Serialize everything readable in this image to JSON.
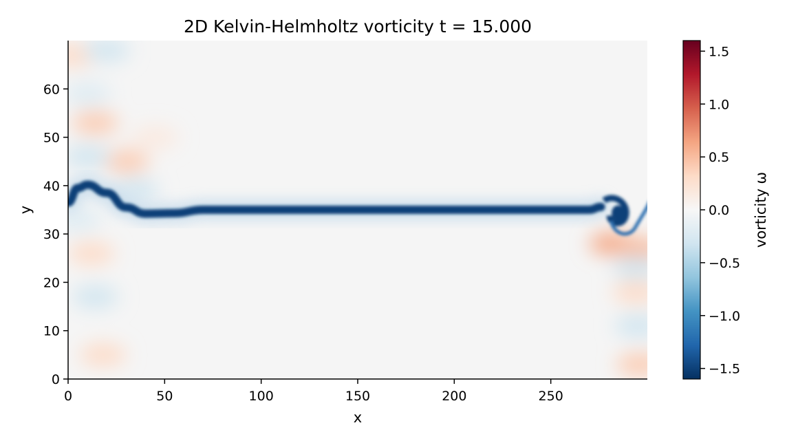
{
  "chart_data": {
    "type": "heatmap",
    "title": "2D Kelvin-Helmholtz vorticity  t = 15.000",
    "xlabel": "x",
    "ylabel": "y",
    "xlim": [
      0,
      300
    ],
    "ylim": [
      0,
      70
    ],
    "xticks": [
      0,
      50,
      100,
      150,
      200,
      250
    ],
    "yticks": [
      0,
      10,
      20,
      30,
      40,
      50,
      60
    ],
    "grid": false,
    "colorbar": {
      "label": "vorticity ω",
      "colormap": "RdBu_r",
      "vmin": -1.6,
      "vmax": 1.6,
      "ticks": [
        -1.5,
        -1.0,
        -0.5,
        0.0,
        0.5,
        1.0,
        1.5
      ],
      "tick_labels": [
        "−1.5",
        "−1.0",
        "−0.5",
        "0.0",
        "0.5",
        "1.0",
        "1.5"
      ]
    },
    "shear_layer": {
      "points": [
        [
          0,
          36.5
        ],
        [
          5,
          39.5
        ],
        [
          10,
          40.2
        ],
        [
          20,
          38.5
        ],
        [
          30,
          35.5
        ],
        [
          40,
          34.2
        ],
        [
          55,
          34.3
        ],
        [
          70,
          35.0
        ],
        [
          150,
          35.0
        ],
        [
          270,
          35.0
        ],
        [
          276,
          35.6
        ]
      ],
      "vorticity": -1.5
    },
    "vortex": {
      "x": 284,
      "y": 33.5,
      "vorticity": -1.5
    },
    "blobs": [
      {
        "x": 14,
        "y": 53,
        "vorticity": 0.4
      },
      {
        "x": 30,
        "y": 45,
        "vorticity": 0.4
      },
      {
        "x": 3,
        "y": 67,
        "vorticity": 0.3
      },
      {
        "x": 12,
        "y": 26,
        "vorticity": 0.3
      },
      {
        "x": 18,
        "y": 5,
        "vorticity": 0.3
      },
      {
        "x": 45,
        "y": 50,
        "vorticity": 0.15
      },
      {
        "x": 10,
        "y": 46,
        "vorticity": -0.3
      },
      {
        "x": 20,
        "y": 68,
        "vorticity": -0.3
      },
      {
        "x": 14,
        "y": 17,
        "vorticity": -0.3
      },
      {
        "x": 5,
        "y": 33,
        "vorticity": -0.2
      },
      {
        "x": 35,
        "y": 39,
        "vorticity": -0.3
      },
      {
        "x": 10,
        "y": 59,
        "vorticity": -0.2
      },
      {
        "x": 282,
        "y": 28,
        "vorticity": 0.6
      },
      {
        "x": 295,
        "y": 27,
        "vorticity": 0.5
      },
      {
        "x": 294,
        "y": 18,
        "vorticity": 0.3
      },
      {
        "x": 296,
        "y": 3,
        "vorticity": 0.4
      },
      {
        "x": 294,
        "y": 23,
        "vorticity": -0.3
      },
      {
        "x": 295,
        "y": 11,
        "vorticity": -0.3
      }
    ]
  }
}
